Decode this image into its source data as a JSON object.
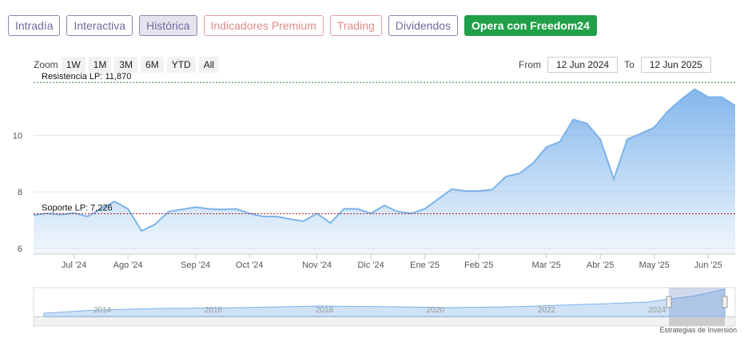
{
  "ui": {
    "tabs": [
      "Intradía",
      "Interactiva",
      "Histórica",
      "Indicadores Premium",
      "Trading",
      "Dividendos",
      "Opera con Freedom24"
    ],
    "zoom_label": "Zoom",
    "zoom_buttons": [
      "1W",
      "1M",
      "3M",
      "6M",
      "YTD",
      "All"
    ],
    "from_label": "From",
    "from_value": "12 Jun 2024",
    "to_label": "To",
    "to_value": "12 Jun 2025",
    "navigator_labels": [
      "2014",
      "2016",
      "2018",
      "2020",
      "2022",
      "2024"
    ],
    "credits": "Estrategias de Inversión"
  },
  "chart_data": {
    "type": "area",
    "color": "#7cb3ea",
    "categories": [
      null,
      null,
      null,
      "Jul '24",
      null,
      null,
      null,
      "Ago '24",
      null,
      null,
      null,
      null,
      "Sep '24",
      null,
      null,
      null,
      "Oct '24",
      null,
      null,
      null,
      null,
      "Nov '24",
      null,
      null,
      null,
      "Dic '24",
      null,
      null,
      null,
      "Ene '25",
      null,
      null,
      null,
      "Feb '25",
      null,
      null,
      null,
      null,
      "Mar '25",
      null,
      null,
      null,
      "Abr '25",
      null,
      null,
      null,
      "May '25",
      null,
      null,
      null,
      "Jun '25",
      null,
      null
    ],
    "values": [
      7.18,
      7.24,
      7.2,
      7.25,
      7.13,
      7.4,
      7.66,
      7.4,
      6.62,
      6.85,
      7.3,
      7.38,
      7.46,
      7.4,
      7.38,
      7.4,
      7.24,
      7.13,
      7.13,
      7.04,
      6.96,
      7.24,
      6.9,
      7.4,
      7.4,
      7.24,
      7.52,
      7.3,
      7.24,
      7.4,
      7.75,
      8.1,
      8.03,
      8.03,
      8.08,
      8.54,
      8.65,
      9.01,
      9.58,
      9.77,
      10.56,
      10.42,
      9.86,
      8.45,
      9.86,
      10.06,
      10.28,
      10.85,
      11.27,
      11.63,
      11.35,
      11.35,
      11.04
    ],
    "ylim": [
      5.8,
      12.1
    ],
    "yticks": [
      6,
      8,
      10
    ],
    "grid": true,
    "plot_lines": [
      {
        "label": "Resistencia LP: 11,870",
        "value": 11.87,
        "color": "#2e7d32"
      },
      {
        "label": "Soporte LP: 7,226",
        "value": 7.226,
        "color": "#b22222"
      }
    ]
  }
}
